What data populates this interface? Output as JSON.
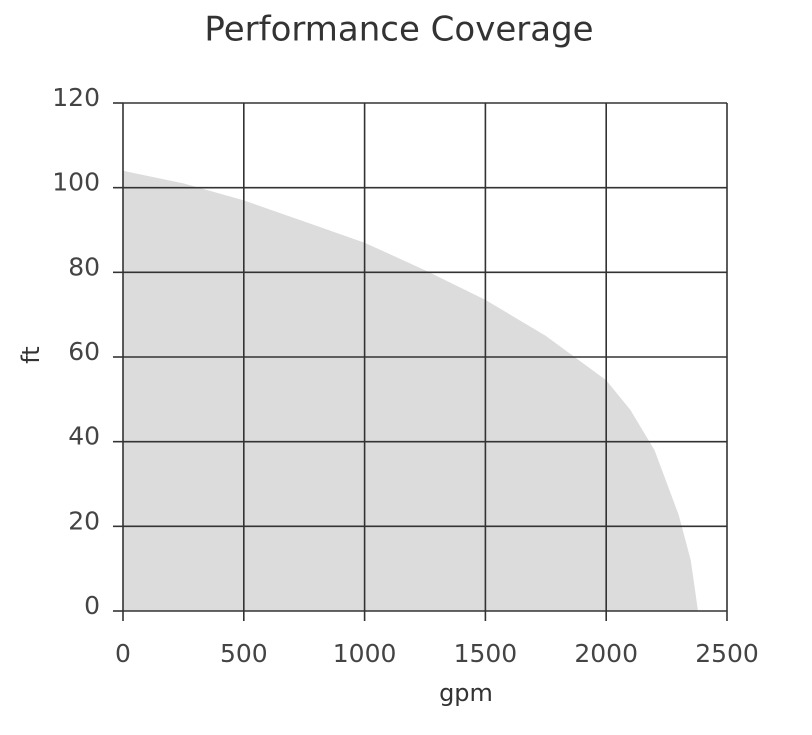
{
  "chart_data": {
    "type": "area",
    "title": "Performance Coverage",
    "x_label": "gpm",
    "y_label": "ft",
    "x": [
      0,
      250,
      500,
      750,
      1000,
      1250,
      1500,
      1750,
      2000,
      2100,
      2200,
      2300,
      2350,
      2380
    ],
    "values": [
      104,
      101,
      97,
      92,
      87,
      80.5,
      73.5,
      65,
      54.5,
      47.5,
      38,
      22.7,
      12,
      0
    ],
    "color": "#dcdcdd",
    "xlim": [
      0,
      2500
    ],
    "xticks": [
      0,
      500,
      1000,
      1500,
      2000,
      2500
    ],
    "ylim": [
      0,
      120
    ],
    "yticks": [
      0,
      20,
      40,
      60,
      80,
      100,
      120
    ],
    "grid": true
  }
}
